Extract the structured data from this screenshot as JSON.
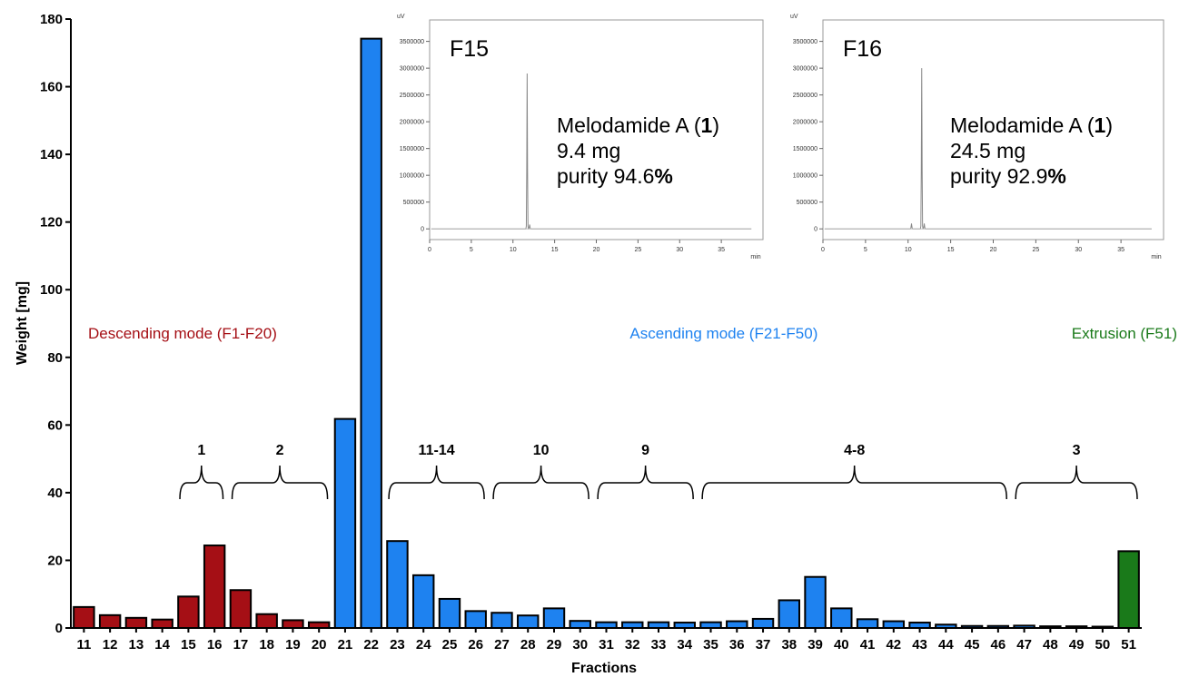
{
  "chart_data": [
    {
      "type": "bar",
      "xlabel": "Fractions",
      "ylabel": "Weight [mg]",
      "ylim": [
        0,
        180
      ],
      "yticks": [
        0,
        20,
        40,
        60,
        80,
        100,
        120,
        140,
        160,
        180
      ],
      "categories": [
        "11",
        "12",
        "13",
        "14",
        "15",
        "16",
        "17",
        "18",
        "19",
        "20",
        "21",
        "22",
        "23",
        "24",
        "25",
        "26",
        "27",
        "28",
        "29",
        "30",
        "31",
        "32",
        "33",
        "34",
        "35",
        "36",
        "37",
        "38",
        "39",
        "40",
        "41",
        "42",
        "43",
        "44",
        "45",
        "46",
        "47",
        "48",
        "49",
        "50",
        "51"
      ],
      "values": [
        6.2,
        3.8,
        3.0,
        2.5,
        9.3,
        24.4,
        11.2,
        4.1,
        2.3,
        1.7,
        61.8,
        174.2,
        25.7,
        15.6,
        8.6,
        5.0,
        4.5,
        3.7,
        5.8,
        2.1,
        1.7,
        1.7,
        1.7,
        1.6,
        1.7,
        2.0,
        2.7,
        8.2,
        15.1,
        5.8,
        2.6,
        2.0,
        1.6,
        1.0,
        0.6,
        0.6,
        0.7,
        0.5,
        0.5,
        0.4,
        22.7
      ],
      "modes": [
        {
          "label": "Descending mode (F1-F20)",
          "color": "#a50f15",
          "from": 0,
          "to": 9
        },
        {
          "label": "Ascending mode (F21-F50)",
          "color": "#1e82f0",
          "from": 10,
          "to": 39
        },
        {
          "label": "Extrusion (F51)",
          "color": "#1a7a1a",
          "from": 40,
          "to": 40
        }
      ],
      "groups": [
        {
          "label": "1",
          "from": "15",
          "to": "16"
        },
        {
          "label": "2",
          "from": "17",
          "to": "20"
        },
        {
          "label": "11-14",
          "from": "23",
          "to": "26"
        },
        {
          "label": "10",
          "from": "27",
          "to": "30"
        },
        {
          "label": "9",
          "from": "31",
          "to": "34"
        },
        {
          "label": "4-8",
          "from": "35",
          "to": "46"
        },
        {
          "label": "3",
          "from": "47",
          "to": "51"
        }
      ]
    },
    {
      "type": "line",
      "title": "F15",
      "ylabel": "uV",
      "xlabel": "min",
      "xlim": [
        0,
        40
      ],
      "ylim": [
        -200000,
        3900000
      ],
      "xticks": [
        0,
        5,
        10,
        15,
        20,
        25,
        30,
        35
      ],
      "yticks": [
        0,
        500000,
        1000000,
        1500000,
        2000000,
        2500000,
        3000000,
        3500000
      ],
      "peaks": [
        {
          "t": 11.7,
          "h": 2900000
        },
        {
          "t": 12.0,
          "h": 80000
        }
      ],
      "annotation": {
        "compound": "Melodamide A (",
        "number": "1",
        "close": ")",
        "mass": "9.4 mg",
        "purity_prefix": "purity 94.6",
        "percent": "%"
      }
    },
    {
      "type": "line",
      "title": "F16",
      "ylabel": "uV",
      "xlabel": "min",
      "xlim": [
        0,
        40
      ],
      "ylim": [
        -200000,
        3900000
      ],
      "xticks": [
        0,
        5,
        10,
        15,
        20,
        25,
        30,
        35
      ],
      "yticks": [
        0,
        500000,
        1000000,
        1500000,
        2000000,
        2500000,
        3000000,
        3500000
      ],
      "peaks": [
        {
          "t": 10.4,
          "h": 100000
        },
        {
          "t": 11.6,
          "h": 3000000
        },
        {
          "t": 11.9,
          "h": 100000
        }
      ],
      "annotation": {
        "compound": "Melodamide A (",
        "number": "1",
        "close": ")",
        "mass": "24.5 mg",
        "purity_prefix": "purity 92.9",
        "percent": "%"
      }
    }
  ]
}
